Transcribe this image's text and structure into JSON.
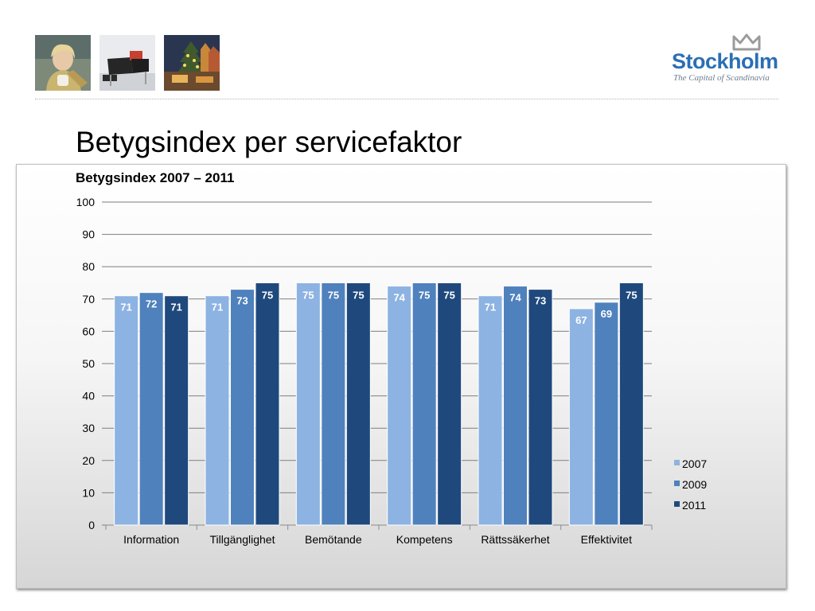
{
  "slide": {
    "title": "Betygsindex per servicefaktor"
  },
  "logo": {
    "name": "Stockholm",
    "tagline": "The Capital of Scandinavia",
    "color": "#2a6fb5"
  },
  "photos": [
    {
      "subject": "woman-with-cup"
    },
    {
      "subject": "lounge-chair"
    },
    {
      "subject": "old-town-christmas"
    }
  ],
  "chart_data": {
    "type": "bar",
    "title": "Betygsindex 2007 – 2011",
    "xlabel": "",
    "ylabel": "",
    "ylim": [
      0,
      100
    ],
    "yticks": [
      0,
      10,
      20,
      30,
      40,
      50,
      60,
      70,
      80,
      90,
      100
    ],
    "grid": true,
    "legend": "right",
    "categories": [
      "Information",
      "Tillgänglighet",
      "Bemötande",
      "Kompetens",
      "Rättssäkerhet",
      "Effektivitet"
    ],
    "series": [
      {
        "name": "2007",
        "color": "#8db3e2",
        "values": [
          71,
          71,
          75,
          74,
          71,
          67
        ]
      },
      {
        "name": "2009",
        "color": "#4f81bd",
        "values": [
          72,
          73,
          75,
          75,
          74,
          69
        ]
      },
      {
        "name": "2011",
        "color": "#1f497d",
        "values": [
          71,
          75,
          75,
          75,
          73,
          75
        ]
      }
    ]
  }
}
